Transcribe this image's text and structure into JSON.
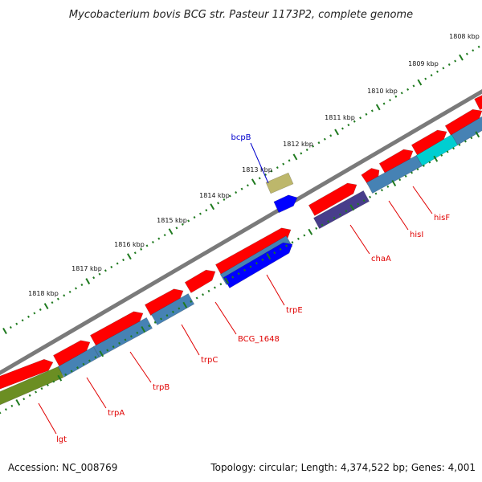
{
  "title": "Mycobacterium bovis BCG str. Pasteur 1173P2, complete genome",
  "footer": {
    "accession": "Accession: NC_008769",
    "summary": "Topology: circular; Length: 4,374,522 bp; Genes: 4,001"
  },
  "colors": {
    "backbone": "#7a7a7a",
    "tick": "#1f7a1f",
    "gene_label_red": "#e00000",
    "gene_label_blue": "#0000cc",
    "cds": "#ff0000",
    "cog_blue": "#4682b4",
    "cog_navy": "#483d8b",
    "cog_olive": "#6b8e23",
    "cog_cyan": "#00ced1",
    "cog_khaki": "#bdb76b",
    "cog_bright_blue": "#0000ff"
  },
  "kbp_labels": [
    "1808 kbp",
    "1809 kbp",
    "1810 kbp",
    "1811 kbp",
    "1812 kbp",
    "1813 kbp",
    "1814 kbp",
    "1815 kbp",
    "1816 kbp",
    "1817 kbp",
    "1818 kbp"
  ],
  "genes": [
    {
      "name": "hisF",
      "color": "red"
    },
    {
      "name": "hisI",
      "color": "red"
    },
    {
      "name": "chaA",
      "color": "red"
    },
    {
      "name": "bcpB",
      "color": "blue"
    },
    {
      "name": "trpE",
      "color": "red"
    },
    {
      "name": "BCG_1648",
      "color": "red"
    },
    {
      "name": "trpC",
      "color": "red"
    },
    {
      "name": "trpB",
      "color": "red"
    },
    {
      "name": "trpA",
      "color": "red"
    },
    {
      "name": "lgt",
      "color": "red"
    }
  ]
}
